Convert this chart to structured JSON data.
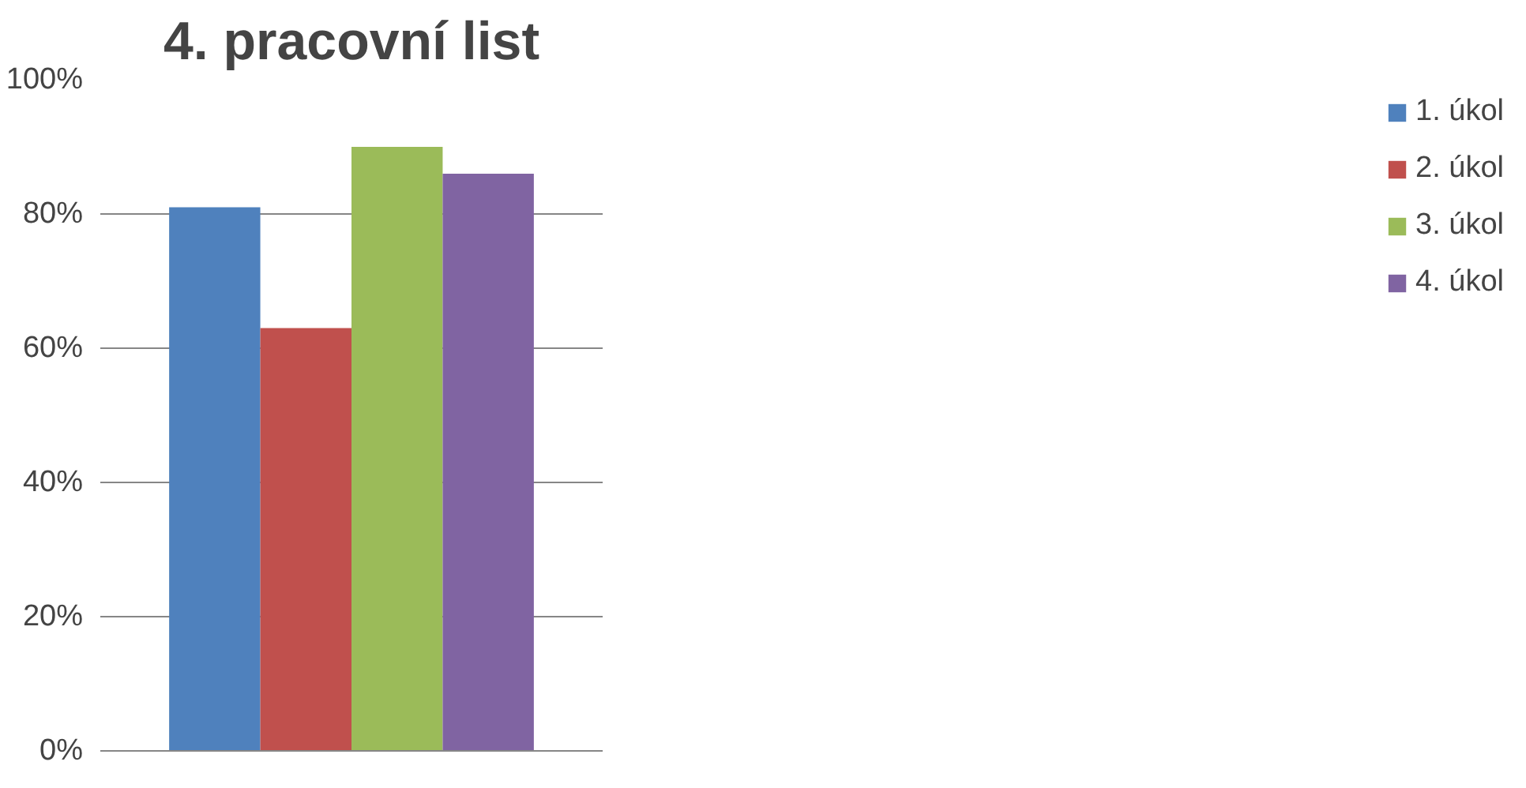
{
  "chart_data": {
    "type": "bar",
    "title": "4. pracovní list",
    "categories": [
      null
    ],
    "series": [
      {
        "name": "1. úkol",
        "color": "#4f81bd",
        "values": [
          81
        ]
      },
      {
        "name": "2. úkol",
        "color": "#c0504d",
        "values": [
          63
        ]
      },
      {
        "name": "3. úkol",
        "color": "#9bbb59",
        "values": [
          90
        ]
      },
      {
        "name": "4. úkol",
        "color": "#8064a2",
        "values": [
          86
        ]
      }
    ],
    "ylim": [
      0,
      100
    ],
    "yticks": [
      {
        "value": 0,
        "label": "0%"
      },
      {
        "value": 20,
        "label": "20%"
      },
      {
        "value": 40,
        "label": "40%"
      },
      {
        "value": 60,
        "label": "60%"
      },
      {
        "value": 80,
        "label": "80%"
      },
      {
        "value": 100,
        "label": "100%"
      }
    ],
    "grid": "y",
    "legend": "right",
    "tick_labels": "y"
  }
}
